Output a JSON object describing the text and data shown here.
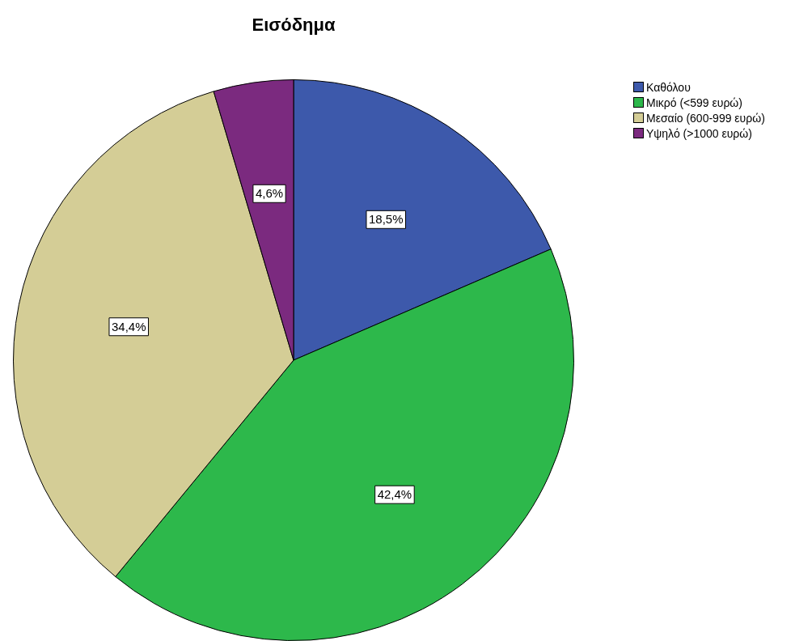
{
  "chart_data": {
    "type": "pie",
    "title": "Εισόδημα",
    "categories": [
      "Καθόλου",
      "Μικρό (<599 ευρώ)",
      "Μεσαίο (600-999 ευρώ)",
      "Υψηλό (>1000 ευρώ)"
    ],
    "values": [
      18.5,
      42.4,
      34.4,
      4.6
    ],
    "value_labels": [
      "18,5%",
      "42,4%",
      "34,4%",
      "4,6%"
    ],
    "colors": [
      "#3d59ab",
      "#2db84b",
      "#d4cd96",
      "#7b2a7f"
    ],
    "legend": "top right"
  }
}
